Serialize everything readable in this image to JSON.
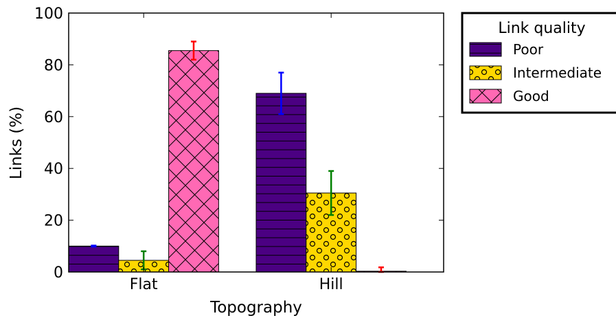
{
  "chart_data": {
    "type": "bar",
    "title": "",
    "xlabel": "Topography",
    "ylabel": "Links (%)",
    "ylim": [
      0,
      100
    ],
    "yticks": [
      0,
      20,
      40,
      60,
      80,
      100
    ],
    "categories": [
      "Flat",
      "Hill"
    ],
    "series": [
      {
        "name": "Poor",
        "values": [
          10,
          69
        ],
        "errors": [
          0.2,
          8
        ],
        "color": "#4b0082",
        "hatch": "horizontal",
        "error_color": "#0000ff"
      },
      {
        "name": "Intermediate",
        "values": [
          4.5,
          30.5
        ],
        "errors": [
          3.5,
          8.5
        ],
        "color": "#ffd700",
        "hatch": "circles",
        "error_color": "#008000"
      },
      {
        "name": "Good",
        "values": [
          85.5,
          0.3
        ],
        "errors": [
          3.5,
          1.5
        ],
        "color": "#ff69b4",
        "hatch": "crosshatch",
        "error_color": "#ff0000"
      }
    ],
    "legend": {
      "title": "Link quality",
      "placement": "outside-top-right"
    },
    "grid": false
  }
}
